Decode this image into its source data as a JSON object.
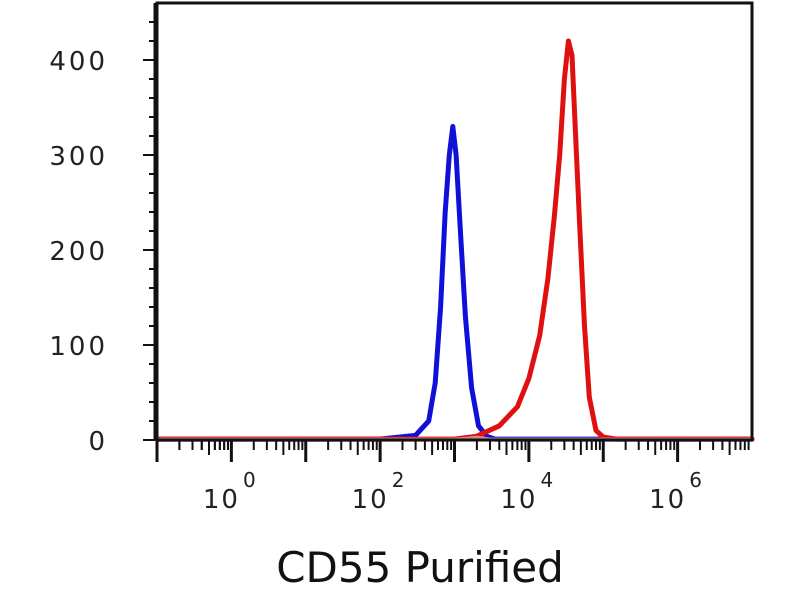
{
  "chart_data": {
    "type": "line",
    "xlabel": "CD55 Purified",
    "ylabel": "",
    "x_scale": "log",
    "xlim": [
      0.1,
      10000000
    ],
    "ylim": [
      0,
      460
    ],
    "y_ticks": [
      0,
      100,
      200,
      300,
      400
    ],
    "y_tick_labels": [
      "0",
      "100",
      "200",
      "300",
      "400"
    ],
    "x_ticks": [
      1,
      100,
      10000,
      1000000
    ],
    "x_tick_labels": [
      {
        "base": "10",
        "exp": "0"
      },
      {
        "base": "10",
        "exp": "2"
      },
      {
        "base": "10",
        "exp": "4"
      },
      {
        "base": "10",
        "exp": "6"
      }
    ],
    "grid": false,
    "series": [
      {
        "color": "#1010d8",
        "x": [
          0.1,
          100,
          300,
          450,
          550,
          650,
          750,
          850,
          950,
          1050,
          1200,
          1400,
          1700,
          2100,
          2700,
          3500,
          5000,
          10000000
        ],
        "y": [
          1,
          1,
          5,
          20,
          60,
          140,
          240,
          300,
          330,
          300,
          220,
          130,
          55,
          15,
          4,
          1,
          1,
          1
        ]
      },
      {
        "color": "#e01010",
        "x": [
          0.1,
          1000,
          2000,
          4000,
          7000,
          10000,
          14000,
          18000,
          22000,
          26000,
          30000,
          34000,
          38000,
          42000,
          48000,
          56000,
          65000,
          80000,
          100000,
          150000,
          10000000
        ],
        "y": [
          1,
          1,
          4,
          15,
          35,
          65,
          110,
          170,
          235,
          300,
          380,
          420,
          405,
          330,
          230,
          120,
          45,
          10,
          3,
          1,
          1
        ]
      },
      {
        "color": "#d08888",
        "x": [
          0.1,
          1000,
          1500,
          2000,
          3000,
          10000000
        ],
        "y": [
          1,
          1,
          2,
          3,
          1,
          1
        ]
      }
    ]
  }
}
